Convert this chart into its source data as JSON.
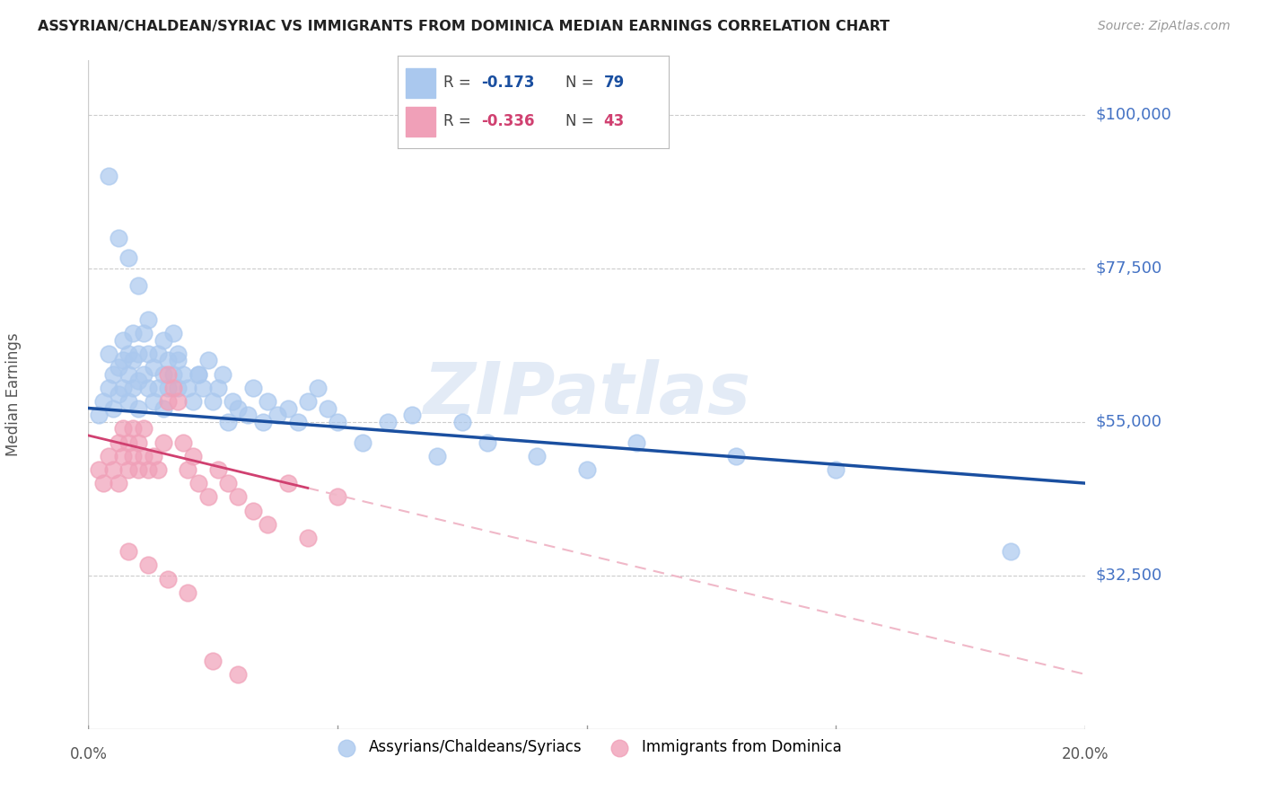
{
  "title": "ASSYRIAN/CHALDEAN/SYRIAC VS IMMIGRANTS FROM DOMINICA MEDIAN EARNINGS CORRELATION CHART",
  "source": "Source: ZipAtlas.com",
  "ylabel": "Median Earnings",
  "ytick_labels": [
    "$100,000",
    "$77,500",
    "$55,000",
    "$32,500"
  ],
  "ytick_values": [
    100000,
    77500,
    55000,
    32500
  ],
  "ymin": 10000,
  "ymax": 108000,
  "xmin": 0.0,
  "xmax": 0.2,
  "legend_blue_r": "-0.173",
  "legend_blue_n": "79",
  "legend_pink_r": "-0.336",
  "legend_pink_n": "43",
  "blue_color": "#aac8ee",
  "pink_color": "#f0a0b8",
  "blue_line_color": "#1a4fa0",
  "pink_line_color": "#d04070",
  "pink_dash_color": "#f0b8c8",
  "watermark_color": "#c8d8ee",
  "blue_scatter_x": [
    0.002,
    0.003,
    0.004,
    0.004,
    0.005,
    0.005,
    0.006,
    0.006,
    0.007,
    0.007,
    0.007,
    0.008,
    0.008,
    0.008,
    0.009,
    0.009,
    0.009,
    0.01,
    0.01,
    0.01,
    0.011,
    0.011,
    0.012,
    0.012,
    0.013,
    0.013,
    0.014,
    0.014,
    0.015,
    0.015,
    0.016,
    0.016,
    0.017,
    0.017,
    0.018,
    0.018,
    0.019,
    0.02,
    0.021,
    0.022,
    0.023,
    0.024,
    0.025,
    0.026,
    0.027,
    0.028,
    0.029,
    0.03,
    0.032,
    0.033,
    0.035,
    0.036,
    0.038,
    0.04,
    0.042,
    0.044,
    0.046,
    0.048,
    0.05,
    0.055,
    0.06,
    0.065,
    0.07,
    0.075,
    0.08,
    0.09,
    0.1,
    0.11,
    0.13,
    0.15,
    0.004,
    0.006,
    0.008,
    0.01,
    0.012,
    0.015,
    0.018,
    0.022,
    0.185
  ],
  "blue_scatter_y": [
    56000,
    58000,
    60000,
    65000,
    57000,
    62000,
    59000,
    63000,
    60000,
    64000,
    67000,
    58000,
    62000,
    65000,
    60000,
    64000,
    68000,
    57000,
    61000,
    65000,
    62000,
    68000,
    60000,
    65000,
    58000,
    63000,
    60000,
    65000,
    57000,
    62000,
    60000,
    64000,
    62000,
    68000,
    60000,
    64000,
    62000,
    60000,
    58000,
    62000,
    60000,
    64000,
    58000,
    60000,
    62000,
    55000,
    58000,
    57000,
    56000,
    60000,
    55000,
    58000,
    56000,
    57000,
    55000,
    58000,
    60000,
    57000,
    55000,
    52000,
    55000,
    56000,
    50000,
    55000,
    52000,
    50000,
    48000,
    52000,
    50000,
    48000,
    91000,
    82000,
    79000,
    75000,
    70000,
    67000,
    65000,
    62000,
    36000
  ],
  "pink_scatter_x": [
    0.002,
    0.003,
    0.004,
    0.005,
    0.006,
    0.006,
    0.007,
    0.007,
    0.008,
    0.008,
    0.009,
    0.009,
    0.01,
    0.01,
    0.011,
    0.011,
    0.012,
    0.013,
    0.014,
    0.015,
    0.016,
    0.016,
    0.017,
    0.018,
    0.019,
    0.02,
    0.021,
    0.022,
    0.024,
    0.026,
    0.028,
    0.03,
    0.033,
    0.036,
    0.04,
    0.044,
    0.05,
    0.008,
    0.012,
    0.016,
    0.02,
    0.025,
    0.03
  ],
  "pink_scatter_y": [
    48000,
    46000,
    50000,
    48000,
    52000,
    46000,
    50000,
    54000,
    48000,
    52000,
    50000,
    54000,
    48000,
    52000,
    50000,
    54000,
    48000,
    50000,
    48000,
    52000,
    58000,
    62000,
    60000,
    58000,
    52000,
    48000,
    50000,
    46000,
    44000,
    48000,
    46000,
    44000,
    42000,
    40000,
    46000,
    38000,
    44000,
    36000,
    34000,
    32000,
    30000,
    20000,
    18000
  ]
}
